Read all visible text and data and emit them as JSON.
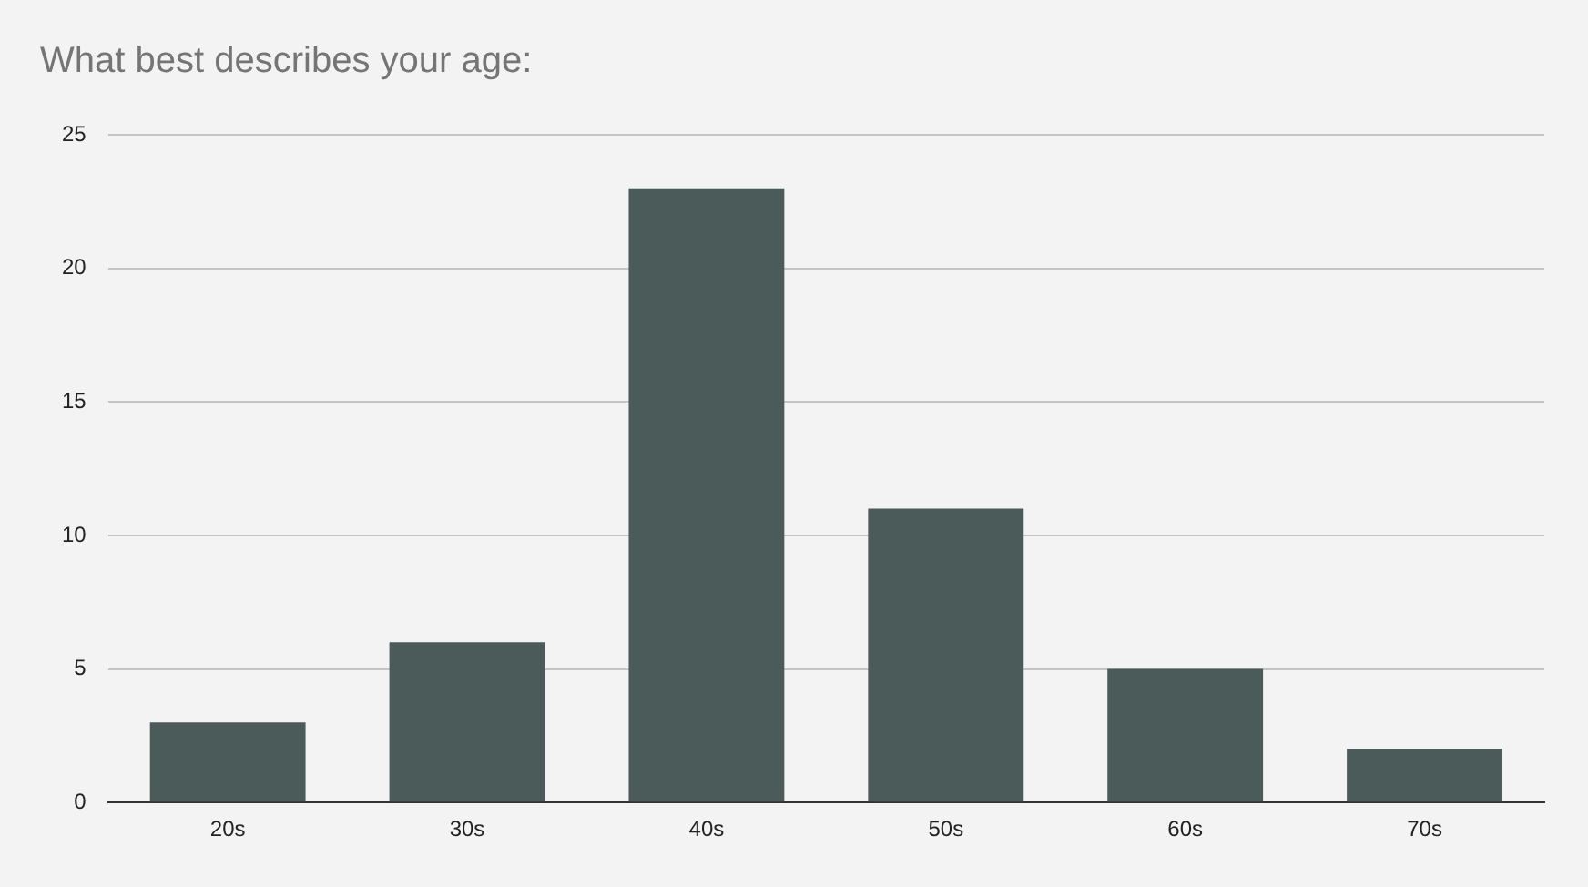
{
  "chart_data": {
    "type": "bar",
    "title": "What best describes your age:",
    "categories": [
      "20s",
      "30s",
      "40s",
      "50s",
      "60s",
      "70s"
    ],
    "values": [
      3,
      6,
      23,
      11,
      5,
      2
    ],
    "color": "#4a5b59",
    "ylim": [
      0,
      25
    ],
    "yticks": [
      0,
      5,
      10,
      15,
      20,
      25
    ],
    "grid": "y"
  }
}
